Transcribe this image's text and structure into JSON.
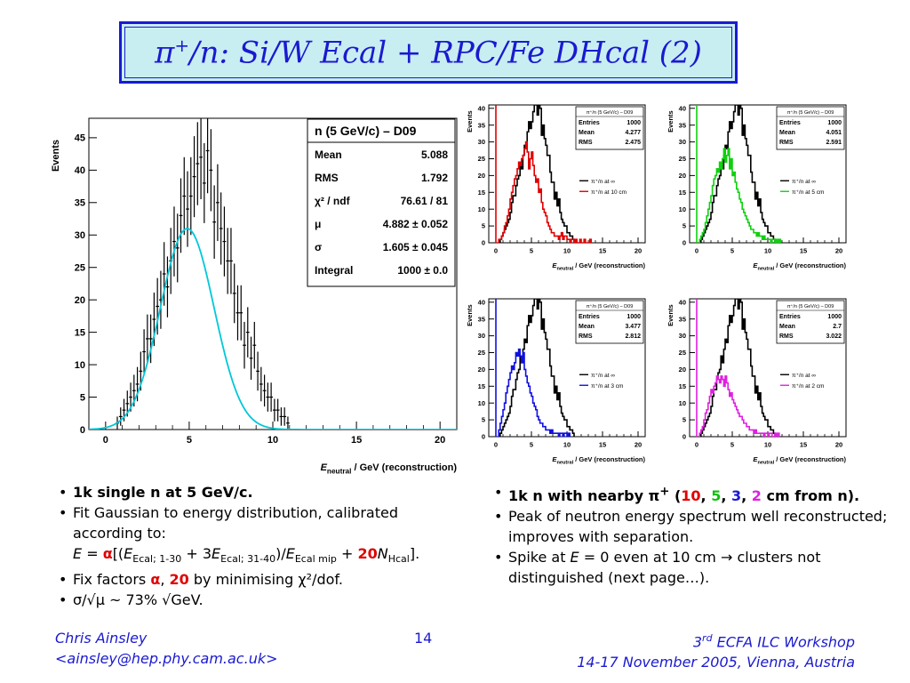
{
  "slide": {
    "title_main": "π",
    "title_sup": "+",
    "title_rest": "/n: Si/W Ecal + RPC/Fe DHcal (2)"
  },
  "left_bullets": {
    "b1": "1k single n at 5 GeV/c.",
    "b2_line1": "Fit Gaussian to energy distribution, calibrated",
    "b2_line2": "according to:",
    "b3_pre": "Fix factors ",
    "b3_alpha": "α",
    "b3_comma": ", ",
    "b3_20": "20",
    "b3_post": " by minimising χ²/dof.",
    "b4": "σ/√μ ~ 73% √GeV."
  },
  "formula": {
    "E": "E",
    "eq": " = ",
    "alpha": "α",
    "open": "[(",
    "e1": "E",
    "s1": "Ecal; 1-30",
    "plus3": " + 3",
    "e2": "E",
    "s2": "Ecal; 31-40",
    "div": ")/",
    "e3": "E",
    "s3": "Ecal mip",
    "plus": " + ",
    "twenty": "20",
    "n": "N",
    "s4": "Hcal",
    "close": "]."
  },
  "right_bullets": {
    "b1_pre": "1k n with nearby π",
    "b1_sup": "+",
    "b1_paren": " (",
    "d10": "10",
    "c1": ", ",
    "d5": "5",
    "c2": ", ",
    "d3": "3",
    "c3": ", ",
    "d2": "2",
    "b1_post": " cm from n).",
    "b2": "Peak of neutron energy spectrum well reconstructed; improves with separation.",
    "b3_pre": "Spike at ",
    "b3_E": "E",
    "b3_post": " = 0 even at 10 cm → clusters not distinguished (next page…)."
  },
  "footer": {
    "author": "Chris Ainsley",
    "email": "<ainsley@hep.phy.cam.ac.uk>",
    "page": "14",
    "workshop_pre": "3",
    "workshop_sup": "rd",
    "workshop_post": " ECFA ILC Workshop",
    "dates": "14-17 November 2005, Vienna, Austria"
  },
  "colors": {
    "title_blue": "#1a1ad0",
    "title_bg": "#c8eef2",
    "fit": "#00c8d8",
    "red": "#e00000",
    "green": "#10d010",
    "blue": "#1010e0",
    "magenta": "#e020e0"
  },
  "chart_data": [
    {
      "type": "histogram",
      "ylabel": "Events",
      "xlabel": "E_neutral / GeV  (reconstruction)",
      "xlim": [
        -1,
        21
      ],
      "ylim": [
        0,
        48
      ],
      "xticks": [
        "0",
        "5",
        "10",
        "15",
        "20"
      ],
      "yticks": [
        "0",
        "5",
        "10",
        "15",
        "20",
        "25",
        "30",
        "35",
        "40",
        "45"
      ],
      "stats_title": "n (5 GeV/c) – D09",
      "stats": [
        {
          "k": "Mean",
          "v": "5.088"
        },
        {
          "k": "RMS",
          "v": "1.792"
        },
        {
          "k": "χ² / ndf",
          "v": "76.61 / 81"
        },
        {
          "k": "μ",
          "v": "4.882 ± 0.052"
        },
        {
          "k": "σ",
          "v": "1.605 ± 0.045"
        },
        {
          "k": "Integral",
          "v": "1000 ± 0.0"
        }
      ],
      "fit": {
        "function": "gaussian",
        "mu": 4.882,
        "sigma": 1.605,
        "amplitude": 31
      },
      "bin_width": 0.2,
      "x_start": 0.6,
      "values": [
        1,
        2,
        3,
        4,
        5,
        6,
        7,
        9,
        12,
        14,
        14,
        17,
        19,
        20,
        24,
        22,
        26,
        29,
        28,
        33,
        36,
        34,
        36,
        39,
        41,
        42,
        38,
        43,
        40,
        32,
        35,
        31,
        29,
        26,
        26,
        21,
        18,
        18,
        13,
        15,
        11,
        13,
        9,
        7,
        6,
        5,
        5,
        3,
        3,
        2,
        2,
        1
      ]
    },
    {
      "type": "histogram",
      "ylabel": "Events",
      "xlabel": "E_neutral / GeV  (reconstruction)",
      "xlim": [
        -1,
        21
      ],
      "ylim": [
        0,
        41
      ],
      "xticks": [
        "0",
        "5",
        "10",
        "15",
        "20"
      ],
      "yticks": [
        "0",
        "5",
        "10",
        "15",
        "20",
        "25",
        "30",
        "35",
        "40"
      ],
      "stats_title": "π⁺/n (5 GeV/c) – D09",
      "stats": [
        {
          "k": "Entries",
          "v": "1000"
        },
        {
          "k": "Mean",
          "v": "4.277"
        },
        {
          "k": "RMS",
          "v": "2.475"
        }
      ],
      "spike": 60,
      "series": [
        {
          "name": "π⁺/n at ∞",
          "color": "#000000",
          "x_start": 0.6,
          "bin_width": 0.2,
          "values": [
            1,
            2,
            3,
            4,
            5,
            6,
            7,
            9,
            12,
            14,
            14,
            17,
            19,
            20,
            24,
            22,
            26,
            29,
            28,
            33,
            36,
            34,
            36,
            39,
            41,
            42,
            38,
            43,
            40,
            32,
            35,
            31,
            29,
            26,
            26,
            21,
            18,
            18,
            13,
            15,
            11,
            13,
            9,
            7,
            6,
            5,
            5,
            3,
            3,
            2,
            2,
            1
          ]
        },
        {
          "name": "π⁺/n at 10 cm",
          "color": "#e00000",
          "x_start": 0.4,
          "bin_width": 0.2,
          "values": [
            1,
            1,
            2,
            3,
            5,
            6,
            8,
            10,
            13,
            15,
            17,
            19,
            20,
            22,
            24,
            23,
            25,
            26,
            28,
            30,
            27,
            22,
            25,
            27,
            23,
            20,
            18,
            19,
            15,
            16,
            12,
            10,
            9,
            8,
            6,
            5,
            4,
            3,
            3,
            2,
            2,
            2,
            1,
            2,
            3,
            1,
            2,
            2,
            1,
            1,
            0,
            1,
            1,
            0,
            1,
            0,
            0,
            1,
            0,
            0,
            1,
            0,
            0,
            0,
            1
          ]
        }
      ]
    },
    {
      "type": "histogram",
      "ylabel": "Events",
      "xlabel": "E_neutral / GeV  (reconstruction)",
      "xlim": [
        -1,
        21
      ],
      "ylim": [
        0,
        41
      ],
      "xticks": [
        "0",
        "5",
        "10",
        "15",
        "20"
      ],
      "yticks": [
        "0",
        "5",
        "10",
        "15",
        "20",
        "25",
        "30",
        "35",
        "40"
      ],
      "stats_title": "π⁺/n (5 GeV/c) – D09",
      "stats": [
        {
          "k": "Entries",
          "v": "1000"
        },
        {
          "k": "Mean",
          "v": "4.051"
        },
        {
          "k": "RMS",
          "v": "2.591"
        }
      ],
      "spike": 60,
      "series": [
        {
          "name": "π⁺/n at ∞",
          "color": "#000000",
          "x_start": 0.6,
          "bin_width": 0.2,
          "values": [
            1,
            2,
            3,
            4,
            5,
            6,
            7,
            9,
            12,
            14,
            14,
            17,
            19,
            20,
            24,
            22,
            26,
            29,
            28,
            33,
            36,
            34,
            36,
            39,
            41,
            42,
            38,
            43,
            40,
            32,
            35,
            31,
            29,
            26,
            26,
            21,
            18,
            18,
            13,
            15,
            11,
            13,
            9,
            7,
            6,
            5,
            5,
            3,
            3,
            2,
            2,
            1
          ]
        },
        {
          "name": "π⁺/n at 5 cm",
          "color": "#10d010",
          "x_start": 0.4,
          "bin_width": 0.2,
          "values": [
            1,
            2,
            3,
            4,
            6,
            8,
            10,
            12,
            14,
            17,
            19,
            20,
            22,
            21,
            24,
            22,
            25,
            28,
            24,
            26,
            28,
            22,
            25,
            20,
            21,
            18,
            16,
            15,
            13,
            12,
            10,
            9,
            8,
            7,
            6,
            5,
            4,
            4,
            3,
            3,
            2,
            3,
            2,
            2,
            1,
            2,
            1,
            1,
            1,
            1,
            0,
            1,
            1,
            0,
            1,
            0,
            1
          ]
        }
      ]
    },
    {
      "type": "histogram",
      "ylabel": "Events",
      "xlabel": "E_neutral / GeV  (reconstruction)",
      "xlim": [
        -1,
        21
      ],
      "ylim": [
        0,
        41
      ],
      "xticks": [
        "0",
        "5",
        "10",
        "15",
        "20"
      ],
      "yticks": [
        "0",
        "5",
        "10",
        "15",
        "20",
        "25",
        "30",
        "35",
        "40"
      ],
      "stats_title": "π⁺/n (5 GeV/c) – D09",
      "stats": [
        {
          "k": "Entries",
          "v": "1000"
        },
        {
          "k": "Mean",
          "v": "3.477"
        },
        {
          "k": "RMS",
          "v": "2.812"
        }
      ],
      "spike": 60,
      "series": [
        {
          "name": "π⁺/n at ∞",
          "color": "#000000",
          "x_start": 0.6,
          "bin_width": 0.2,
          "values": [
            1,
            2,
            3,
            4,
            5,
            6,
            7,
            9,
            12,
            14,
            14,
            17,
            19,
            20,
            24,
            22,
            26,
            29,
            28,
            33,
            36,
            34,
            36,
            39,
            41,
            42,
            38,
            43,
            40,
            32,
            35,
            31,
            29,
            26,
            26,
            21,
            18,
            18,
            13,
            15,
            11,
            13,
            9,
            7,
            6,
            5,
            5,
            3,
            3,
            2,
            2,
            1
          ]
        },
        {
          "name": "π⁺/n at 3 cm",
          "color": "#1010e0",
          "x_start": 0.4,
          "bin_width": 0.2,
          "values": [
            2,
            4,
            6,
            8,
            10,
            13,
            15,
            17,
            19,
            21,
            20,
            22,
            25,
            24,
            26,
            24,
            22,
            25,
            20,
            18,
            16,
            15,
            13,
            12,
            10,
            9,
            8,
            6,
            5,
            4,
            4,
            3,
            3,
            2,
            2,
            2,
            1,
            2,
            1,
            1,
            1,
            1,
            0,
            1,
            1,
            0,
            1,
            1,
            0,
            1
          ]
        }
      ]
    },
    {
      "type": "histogram",
      "ylabel": "Events",
      "xlabel": "E_neutral / GeV  (reconstruction)",
      "xlim": [
        -1,
        21
      ],
      "ylim": [
        0,
        41
      ],
      "xticks": [
        "0",
        "5",
        "10",
        "15",
        "20"
      ],
      "yticks": [
        "0",
        "5",
        "10",
        "15",
        "20",
        "25",
        "30",
        "35",
        "40"
      ],
      "stats_title": "π⁺/n (5 GeV/c) – D09",
      "stats": [
        {
          "k": "Entries",
          "v": "1000"
        },
        {
          "k": "Mean",
          "v": "2.7"
        },
        {
          "k": "RMS",
          "v": "3.022"
        }
      ],
      "spike": 60,
      "series": [
        {
          "name": "π⁺/n at ∞",
          "color": "#000000",
          "x_start": 0.6,
          "bin_width": 0.2,
          "values": [
            1,
            2,
            3,
            4,
            5,
            6,
            7,
            9,
            12,
            14,
            14,
            17,
            19,
            20,
            24,
            22,
            26,
            29,
            28,
            33,
            36,
            34,
            36,
            39,
            41,
            42,
            38,
            43,
            40,
            32,
            35,
            31,
            29,
            26,
            26,
            21,
            18,
            18,
            13,
            15,
            11,
            13,
            9,
            7,
            6,
            5,
            5,
            3,
            3,
            2,
            2,
            1
          ]
        },
        {
          "name": "π⁺/n at 2 cm",
          "color": "#e020e0",
          "x_start": 0.4,
          "bin_width": 0.2,
          "values": [
            1,
            2,
            3,
            5,
            7,
            8,
            10,
            12,
            14,
            13,
            15,
            16,
            18,
            17,
            16,
            18,
            17,
            15,
            18,
            16,
            14,
            12,
            13,
            11,
            10,
            9,
            8,
            7,
            6,
            6,
            5,
            4,
            4,
            3,
            3,
            2,
            2,
            2,
            1,
            2,
            1,
            1,
            1,
            1,
            1,
            0,
            1,
            1,
            0,
            1,
            1,
            0,
            0,
            1,
            0,
            1
          ]
        }
      ]
    }
  ]
}
